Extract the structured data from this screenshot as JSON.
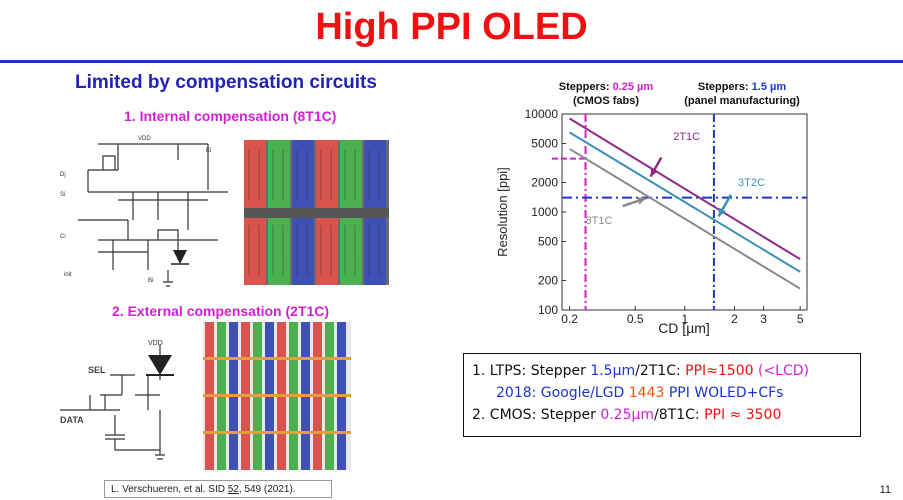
{
  "slide": {
    "title": "High PPI OLED",
    "subtitle": "Limited by compensation circuits",
    "section1": "1. Internal compensation (8T1C)",
    "section2": "2. External compensation (2T1C)",
    "reference_prefix": "L. Verschueren, et al. SID ",
    "reference_volume": "52",
    "reference_suffix": ", 549 (2021).",
    "page_number": "11"
  },
  "circuit1_labels": {
    "vdd": "VDD",
    "di": "Dj",
    "si": "Si",
    "ci": "Ci",
    "init": "init",
    "bi": "Bi",
    "ei": "Ei"
  },
  "circuit2_labels": {
    "vdd": "VDD",
    "sel": "SEL",
    "data": "DATA"
  },
  "steppers": {
    "left_prefix": "Steppers: ",
    "left_value": "0.25 µm",
    "left_sub": "(CMOS fabs)",
    "right_prefix": "Steppers: ",
    "right_value": "1.5 µm",
    "right_sub": "(panel manufacturing)"
  },
  "notes": {
    "line1_prefix": "1.  LTPS: Stepper ",
    "line1_stepper": "1.5µm",
    "line1_mid": "/2T1C: ",
    "line1_ppi": "PPI≈1500",
    "line1_lcd": " (<LCD)",
    "line2_year": "2018: Google/LGD ",
    "line2_value": "1443",
    "line2_rest": " PPI WOLED+CFs",
    "line3_prefix": "2. CMOS: Stepper ",
    "line3_stepper": "0.25µm",
    "line3_mid": "/8T1C: ",
    "line3_ppi": "PPI ≈ 3500"
  },
  "colors": {
    "title": "#ee1111",
    "subtitle": "#2222bb",
    "section": "#d21fd2",
    "series_2T1C": "#8b2a8b",
    "series_3T2C": "#3d8fb5",
    "series_8T1C": "#8a8a8a",
    "stepper_cmos_line": "#d21fd2",
    "stepper_panel_line": "#1a36c8"
  },
  "chart_data": {
    "type": "line",
    "xlabel": "CD [µm]",
    "ylabel": "Resolution [ppi]",
    "xscale": "log",
    "yscale": "log",
    "xlim": [
      0.18,
      5.5
    ],
    "ylim": [
      100,
      10000
    ],
    "xticks": [
      0.2,
      0.5,
      1,
      2,
      3,
      5
    ],
    "xtick_labels": [
      "0.2",
      "0.5",
      "1",
      "2",
      "3",
      "5"
    ],
    "yticks": [
      100,
      200,
      500,
      1000,
      2000,
      5000,
      10000
    ],
    "ytick_labels": [
      "100",
      "200",
      "500",
      "1000",
      "2000",
      "5000",
      "10000"
    ],
    "series": [
      {
        "name": "2T1C",
        "x": [
          0.2,
          5
        ],
        "y": [
          9000,
          330
        ]
      },
      {
        "name": "3T2C",
        "x": [
          0.2,
          5
        ],
        "y": [
          6500,
          245
        ]
      },
      {
        "name": "8T1C",
        "x": [
          0.2,
          5
        ],
        "y": [
          4400,
          165
        ]
      }
    ],
    "reference_lines": {
      "vertical_cmos_x": 0.25,
      "vertical_panel_x": 1.5,
      "horizontal_ppi": 1400,
      "horizontal_cmos_marker_ppi": 3500
    },
    "grid": false
  }
}
